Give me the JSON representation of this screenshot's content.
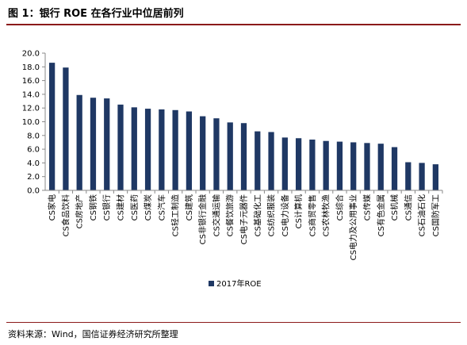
{
  "title": "图 1：银行 ROE 在各行业中位居前列",
  "source": "资料来源：Wind，国信证券经济研究所整理",
  "chart_data": {
    "type": "bar",
    "title": "",
    "xlabel": "",
    "ylabel": "",
    "ylim": [
      0,
      20
    ],
    "yticks": [
      "0.0",
      "2.0",
      "4.0",
      "6.0",
      "8.0",
      "10.0",
      "12.0",
      "14.0",
      "16.0",
      "18.0",
      "20.0"
    ],
    "grid": false,
    "legend_position": "bottom",
    "bar_color": "#1f3864",
    "categories": [
      "CS家电",
      "CS食品饮料",
      "CS房地产",
      "CS钢铁",
      "CS银行",
      "CS建材",
      "CS医药",
      "CS煤炭",
      "CS汽车",
      "CS轻工制造",
      "CS建筑",
      "CS非银行金融",
      "CS交通运输",
      "CS餐饮旅游",
      "CS电子元器件",
      "CS基础化工",
      "CS纺织服装",
      "CS电力设备",
      "CS计算机",
      "CS商贸零售",
      "CS农林牧渔",
      "CS综合",
      "CS电力及公用事业",
      "CS传媒",
      "CS有色金属",
      "CS机械",
      "CS通信",
      "CS石油石化",
      "CS国防军工"
    ],
    "series": [
      {
        "name": "2017年ROE",
        "values": [
          18.6,
          17.9,
          13.9,
          13.5,
          13.4,
          12.5,
          12.1,
          11.9,
          11.8,
          11.7,
          11.5,
          10.8,
          10.5,
          9.9,
          9.8,
          8.6,
          8.5,
          7.7,
          7.6,
          7.4,
          7.2,
          7.1,
          7.0,
          6.9,
          6.8,
          6.3,
          4.1,
          4.0,
          3.8
        ]
      }
    ]
  }
}
